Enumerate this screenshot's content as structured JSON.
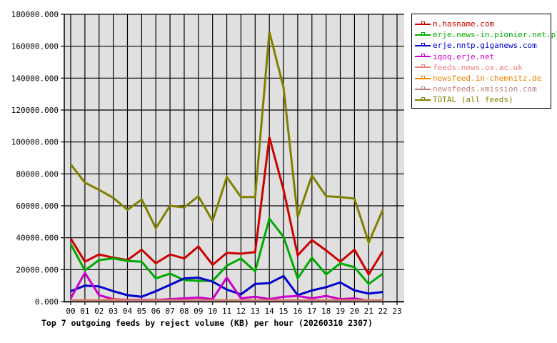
{
  "chart_data": {
    "type": "line",
    "title": "Top 7 outgoing feeds by reject volume (KB) per hour (20260310 2307)",
    "xlabel": "",
    "ylabel": "",
    "ylim": [
      0,
      180000
    ],
    "grid": true,
    "legend_position": "right",
    "yticks": [
      "0.000",
      "20000.000",
      "40000.000",
      "60000.000",
      "80000.000",
      "100000.000",
      "120000.000",
      "140000.000",
      "160000.000",
      "180000.000"
    ],
    "categories": [
      "00",
      "01",
      "02",
      "03",
      "04",
      "05",
      "06",
      "07",
      "08",
      "09",
      "10",
      "11",
      "12",
      "13",
      "14",
      "15",
      "16",
      "17",
      "18",
      "19",
      "20",
      "21",
      "22",
      "23"
    ],
    "series": [
      {
        "name": "n.hasname.com",
        "color": "#cc0000",
        "values": [
          39500,
          25000,
          29500,
          27500,
          26000,
          32500,
          24000,
          29500,
          27000,
          34500,
          23000,
          30500,
          30000,
          31000,
          103000,
          70000,
          29000,
          38500,
          32000,
          25000,
          32500,
          17000,
          31500,
          null
        ]
      },
      {
        "name": "erje.news-in.pionier.net.pl",
        "color": "#00aa00",
        "values": [
          36000,
          19500,
          26000,
          27000,
          25500,
          25000,
          14500,
          17500,
          13500,
          13000,
          13000,
          22500,
          27000,
          19000,
          52000,
          40500,
          14500,
          27500,
          17000,
          24000,
          21500,
          11000,
          17500,
          null
        ]
      },
      {
        "name": "erje.nntp.giganews.com",
        "color": "#0000cc",
        "values": [
          6500,
          10000,
          9500,
          6500,
          4000,
          3000,
          6500,
          10500,
          14500,
          15000,
          12500,
          7500,
          4500,
          11000,
          11500,
          16000,
          4000,
          7000,
          9000,
          12000,
          7000,
          5000,
          6000,
          null
        ]
      },
      {
        "name": "iqoq.erje.net",
        "color": "#cc00cc",
        "values": [
          2000,
          18000,
          4000,
          1500,
          1000,
          1000,
          1000,
          1500,
          2000,
          2500,
          1500,
          15000,
          2000,
          3000,
          1500,
          3000,
          3500,
          2000,
          3500,
          1500,
          2000,
          500,
          500,
          null
        ]
      },
      {
        "name": "feeds.news.ox.ac.uk",
        "color": "#f08080",
        "values": [
          500,
          500,
          500,
          500,
          500,
          500,
          500,
          500,
          500,
          500,
          500,
          500,
          500,
          500,
          500,
          500,
          500,
          500,
          500,
          500,
          500,
          500,
          500,
          null
        ]
      },
      {
        "name": "newsfeed.in-chemnitz.de",
        "color": "#f08000",
        "values": [
          800,
          800,
          800,
          1200,
          800,
          800,
          800,
          800,
          800,
          800,
          800,
          800,
          800,
          800,
          800,
          800,
          800,
          800,
          800,
          800,
          800,
          800,
          800,
          null
        ]
      },
      {
        "name": "newsfeeds.xmission.com",
        "color": "#c08080",
        "values": [
          600,
          600,
          600,
          600,
          600,
          600,
          600,
          600,
          600,
          600,
          600,
          600,
          600,
          600,
          600,
          600,
          600,
          600,
          600,
          600,
          600,
          600,
          600,
          null
        ]
      },
      {
        "name": "TOTAL (all feeds)",
        "color": "#808000",
        "values": [
          86000,
          74500,
          70000,
          65000,
          57500,
          64000,
          46000,
          60000,
          59000,
          66000,
          50500,
          78000,
          65500,
          65500,
          169000,
          134000,
          53000,
          79000,
          66000,
          65500,
          64500,
          37000,
          57500,
          null
        ]
      }
    ]
  }
}
